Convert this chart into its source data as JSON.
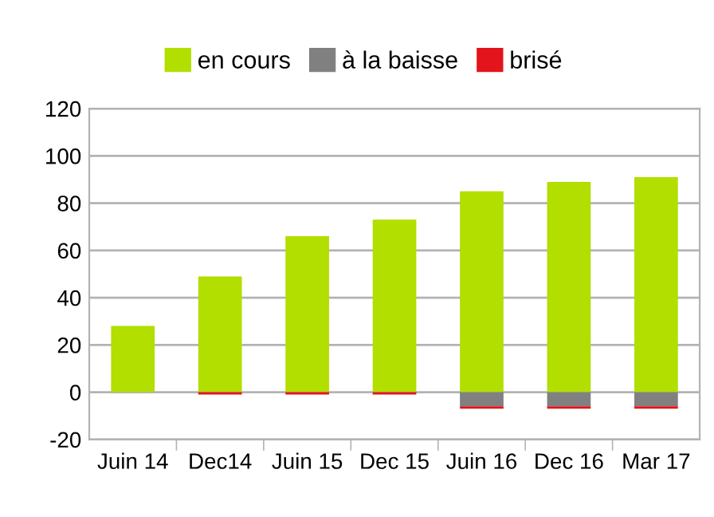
{
  "chart_data": {
    "type": "bar",
    "stacked": true,
    "categories": [
      "Juin 14",
      "Dec14",
      "Juin 15",
      "Dec 15",
      "Juin 16",
      "Dec 16",
      "Mar 17"
    ],
    "series": [
      {
        "name": "en cours",
        "color": "#b2de00",
        "values": [
          28,
          49,
          66,
          73,
          85,
          89,
          91
        ]
      },
      {
        "name": "à la baisse",
        "color": "#808080",
        "values": [
          0,
          0,
          0,
          0,
          -6,
          -6,
          -6
        ]
      },
      {
        "name": "brisé",
        "color": "#e3141b",
        "values": [
          0,
          -1,
          -1,
          -1,
          -1,
          -1,
          -1
        ]
      }
    ],
    "ylim": [
      -20,
      120
    ],
    "yticks": [
      -20,
      0,
      20,
      40,
      60,
      80,
      100,
      120
    ],
    "grid": "y",
    "legend": "top"
  }
}
